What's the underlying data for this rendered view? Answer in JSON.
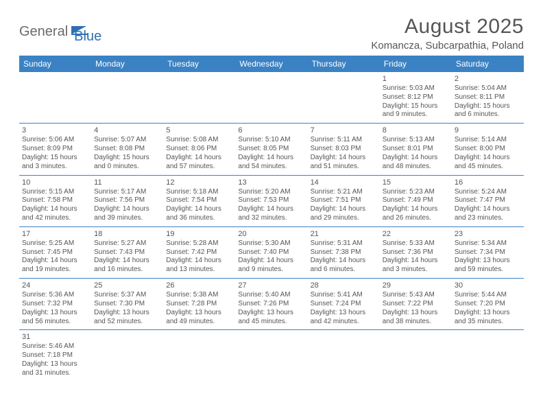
{
  "brand": {
    "part1": "General",
    "part2": "Blue"
  },
  "title": "August 2025",
  "location": "Komancza, Subcarpathia, Poland",
  "colors": {
    "header_bg": "#3b82c4",
    "header_text": "#ffffff",
    "row_border": "#3b82c4",
    "body_text": "#555555",
    "brand_gray": "#6a6a6a",
    "brand_blue": "#2f6fb3",
    "background": "#ffffff"
  },
  "typography": {
    "title_fontsize": 30,
    "location_fontsize": 15,
    "header_fontsize": 12,
    "cell_fontsize": 10,
    "daynum_fontsize": 11
  },
  "weekdays": [
    "Sunday",
    "Monday",
    "Tuesday",
    "Wednesday",
    "Thursday",
    "Friday",
    "Saturday"
  ],
  "weeks": [
    [
      null,
      null,
      null,
      null,
      null,
      {
        "day": "1",
        "sunrise": "Sunrise: 5:03 AM",
        "sunset": "Sunset: 8:12 PM",
        "daylight1": "Daylight: 15 hours",
        "daylight2": "and 9 minutes."
      },
      {
        "day": "2",
        "sunrise": "Sunrise: 5:04 AM",
        "sunset": "Sunset: 8:11 PM",
        "daylight1": "Daylight: 15 hours",
        "daylight2": "and 6 minutes."
      }
    ],
    [
      {
        "day": "3",
        "sunrise": "Sunrise: 5:06 AM",
        "sunset": "Sunset: 8:09 PM",
        "daylight1": "Daylight: 15 hours",
        "daylight2": "and 3 minutes."
      },
      {
        "day": "4",
        "sunrise": "Sunrise: 5:07 AM",
        "sunset": "Sunset: 8:08 PM",
        "daylight1": "Daylight: 15 hours",
        "daylight2": "and 0 minutes."
      },
      {
        "day": "5",
        "sunrise": "Sunrise: 5:08 AM",
        "sunset": "Sunset: 8:06 PM",
        "daylight1": "Daylight: 14 hours",
        "daylight2": "and 57 minutes."
      },
      {
        "day": "6",
        "sunrise": "Sunrise: 5:10 AM",
        "sunset": "Sunset: 8:05 PM",
        "daylight1": "Daylight: 14 hours",
        "daylight2": "and 54 minutes."
      },
      {
        "day": "7",
        "sunrise": "Sunrise: 5:11 AM",
        "sunset": "Sunset: 8:03 PM",
        "daylight1": "Daylight: 14 hours",
        "daylight2": "and 51 minutes."
      },
      {
        "day": "8",
        "sunrise": "Sunrise: 5:13 AM",
        "sunset": "Sunset: 8:01 PM",
        "daylight1": "Daylight: 14 hours",
        "daylight2": "and 48 minutes."
      },
      {
        "day": "9",
        "sunrise": "Sunrise: 5:14 AM",
        "sunset": "Sunset: 8:00 PM",
        "daylight1": "Daylight: 14 hours",
        "daylight2": "and 45 minutes."
      }
    ],
    [
      {
        "day": "10",
        "sunrise": "Sunrise: 5:15 AM",
        "sunset": "Sunset: 7:58 PM",
        "daylight1": "Daylight: 14 hours",
        "daylight2": "and 42 minutes."
      },
      {
        "day": "11",
        "sunrise": "Sunrise: 5:17 AM",
        "sunset": "Sunset: 7:56 PM",
        "daylight1": "Daylight: 14 hours",
        "daylight2": "and 39 minutes."
      },
      {
        "day": "12",
        "sunrise": "Sunrise: 5:18 AM",
        "sunset": "Sunset: 7:54 PM",
        "daylight1": "Daylight: 14 hours",
        "daylight2": "and 36 minutes."
      },
      {
        "day": "13",
        "sunrise": "Sunrise: 5:20 AM",
        "sunset": "Sunset: 7:53 PM",
        "daylight1": "Daylight: 14 hours",
        "daylight2": "and 32 minutes."
      },
      {
        "day": "14",
        "sunrise": "Sunrise: 5:21 AM",
        "sunset": "Sunset: 7:51 PM",
        "daylight1": "Daylight: 14 hours",
        "daylight2": "and 29 minutes."
      },
      {
        "day": "15",
        "sunrise": "Sunrise: 5:23 AM",
        "sunset": "Sunset: 7:49 PM",
        "daylight1": "Daylight: 14 hours",
        "daylight2": "and 26 minutes."
      },
      {
        "day": "16",
        "sunrise": "Sunrise: 5:24 AM",
        "sunset": "Sunset: 7:47 PM",
        "daylight1": "Daylight: 14 hours",
        "daylight2": "and 23 minutes."
      }
    ],
    [
      {
        "day": "17",
        "sunrise": "Sunrise: 5:25 AM",
        "sunset": "Sunset: 7:45 PM",
        "daylight1": "Daylight: 14 hours",
        "daylight2": "and 19 minutes."
      },
      {
        "day": "18",
        "sunrise": "Sunrise: 5:27 AM",
        "sunset": "Sunset: 7:43 PM",
        "daylight1": "Daylight: 14 hours",
        "daylight2": "and 16 minutes."
      },
      {
        "day": "19",
        "sunrise": "Sunrise: 5:28 AM",
        "sunset": "Sunset: 7:42 PM",
        "daylight1": "Daylight: 14 hours",
        "daylight2": "and 13 minutes."
      },
      {
        "day": "20",
        "sunrise": "Sunrise: 5:30 AM",
        "sunset": "Sunset: 7:40 PM",
        "daylight1": "Daylight: 14 hours",
        "daylight2": "and 9 minutes."
      },
      {
        "day": "21",
        "sunrise": "Sunrise: 5:31 AM",
        "sunset": "Sunset: 7:38 PM",
        "daylight1": "Daylight: 14 hours",
        "daylight2": "and 6 minutes."
      },
      {
        "day": "22",
        "sunrise": "Sunrise: 5:33 AM",
        "sunset": "Sunset: 7:36 PM",
        "daylight1": "Daylight: 14 hours",
        "daylight2": "and 3 minutes."
      },
      {
        "day": "23",
        "sunrise": "Sunrise: 5:34 AM",
        "sunset": "Sunset: 7:34 PM",
        "daylight1": "Daylight: 13 hours",
        "daylight2": "and 59 minutes."
      }
    ],
    [
      {
        "day": "24",
        "sunrise": "Sunrise: 5:36 AM",
        "sunset": "Sunset: 7:32 PM",
        "daylight1": "Daylight: 13 hours",
        "daylight2": "and 56 minutes."
      },
      {
        "day": "25",
        "sunrise": "Sunrise: 5:37 AM",
        "sunset": "Sunset: 7:30 PM",
        "daylight1": "Daylight: 13 hours",
        "daylight2": "and 52 minutes."
      },
      {
        "day": "26",
        "sunrise": "Sunrise: 5:38 AM",
        "sunset": "Sunset: 7:28 PM",
        "daylight1": "Daylight: 13 hours",
        "daylight2": "and 49 minutes."
      },
      {
        "day": "27",
        "sunrise": "Sunrise: 5:40 AM",
        "sunset": "Sunset: 7:26 PM",
        "daylight1": "Daylight: 13 hours",
        "daylight2": "and 45 minutes."
      },
      {
        "day": "28",
        "sunrise": "Sunrise: 5:41 AM",
        "sunset": "Sunset: 7:24 PM",
        "daylight1": "Daylight: 13 hours",
        "daylight2": "and 42 minutes."
      },
      {
        "day": "29",
        "sunrise": "Sunrise: 5:43 AM",
        "sunset": "Sunset: 7:22 PM",
        "daylight1": "Daylight: 13 hours",
        "daylight2": "and 38 minutes."
      },
      {
        "day": "30",
        "sunrise": "Sunrise: 5:44 AM",
        "sunset": "Sunset: 7:20 PM",
        "daylight1": "Daylight: 13 hours",
        "daylight2": "and 35 minutes."
      }
    ],
    [
      {
        "day": "31",
        "sunrise": "Sunrise: 5:46 AM",
        "sunset": "Sunset: 7:18 PM",
        "daylight1": "Daylight: 13 hours",
        "daylight2": "and 31 minutes."
      },
      null,
      null,
      null,
      null,
      null,
      null
    ]
  ]
}
